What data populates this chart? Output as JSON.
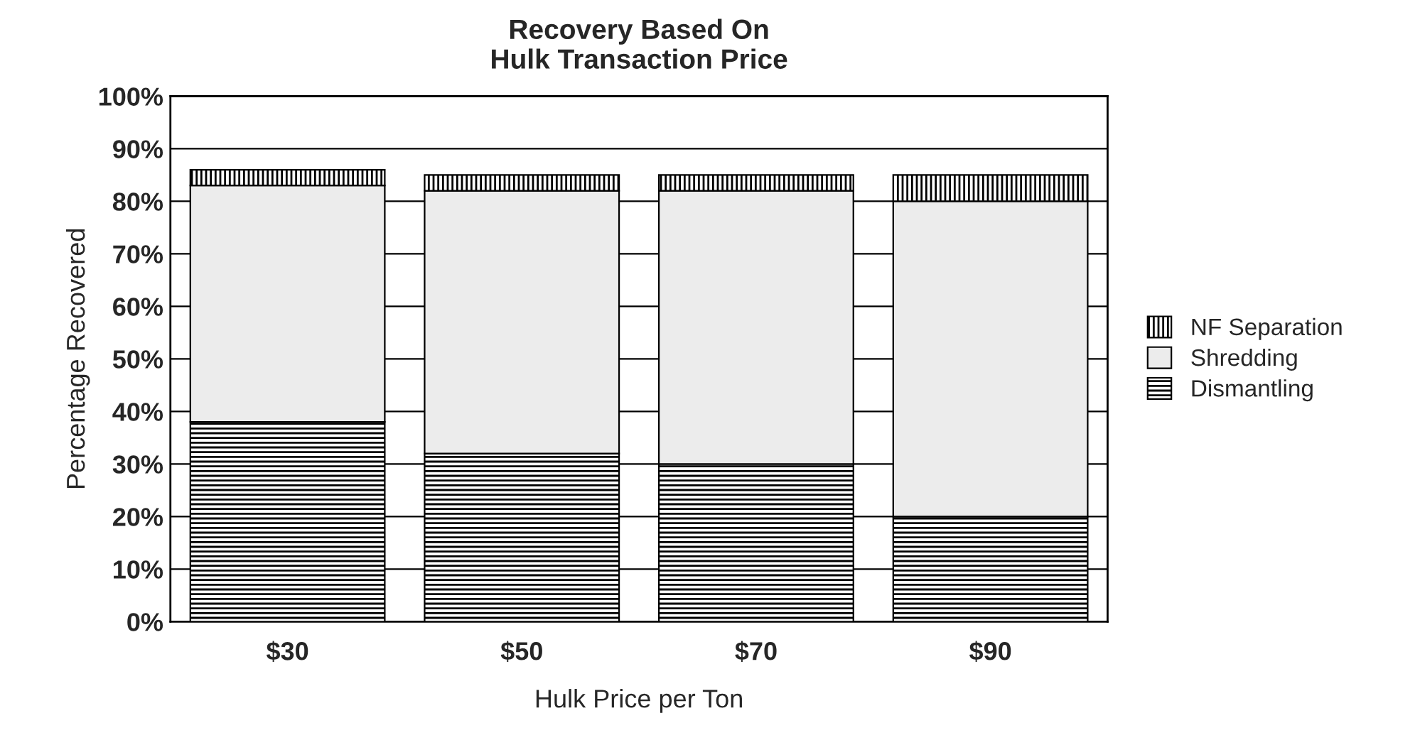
{
  "chart_data": {
    "type": "bar",
    "stacked": true,
    "title": "Recovery Based On\nHulk Transaction Price",
    "xlabel": "Hulk Price per Ton",
    "ylabel": "Percentage Recovered",
    "categories": [
      "$30",
      "$50",
      "$70",
      "$90"
    ],
    "series": [
      {
        "name": "Dismantling",
        "color": "#000000",
        "values": [
          38,
          32,
          30,
          20
        ]
      },
      {
        "name": "Shredding",
        "color": "#ececec",
        "values": [
          45,
          50,
          52,
          60
        ]
      },
      {
        "name": "NF Separation",
        "color": "#000000",
        "values": [
          3,
          3,
          3,
          5
        ]
      }
    ],
    "ylim": [
      0,
      100
    ],
    "yticks": [
      {
        "value": 0,
        "label": "0%"
      },
      {
        "value": 10,
        "label": "10%"
      },
      {
        "value": 20,
        "label": "20%"
      },
      {
        "value": 30,
        "label": "30%"
      },
      {
        "value": 40,
        "label": "40%"
      },
      {
        "value": 50,
        "label": "50%"
      },
      {
        "value": 60,
        "label": "60%"
      },
      {
        "value": 70,
        "label": "70%"
      },
      {
        "value": 80,
        "label": "80%"
      },
      {
        "value": 90,
        "label": "90%"
      },
      {
        "value": 100,
        "label": "100%"
      }
    ],
    "grid": "y",
    "legend": "right"
  }
}
